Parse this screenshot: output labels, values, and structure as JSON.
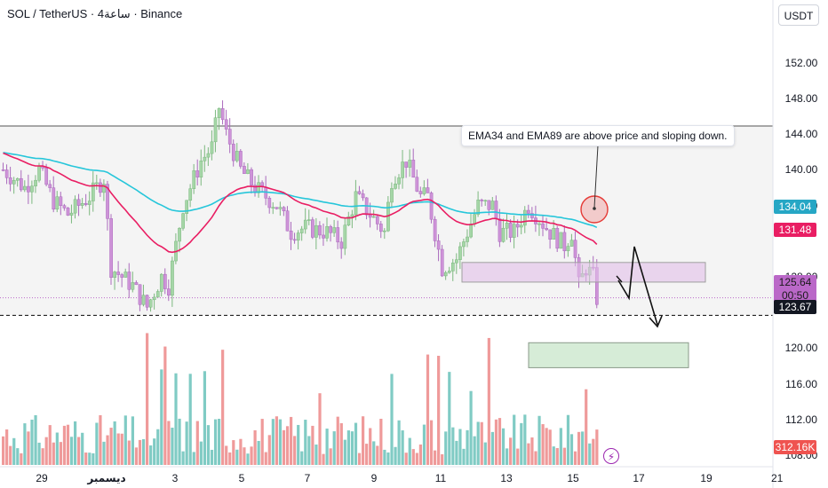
{
  "header": {
    "title": "SOL / TetherUS · 4ساعة · Binance"
  },
  "price_axis": {
    "unit": "USDT"
  },
  "tags": {
    "ema89": "134.04",
    "ema34": "131.48",
    "price": "125.64",
    "countdown": "00:50",
    "support": "123.67",
    "volume": "312.16K"
  },
  "annotation": "EMA34 and EMA89 are above price and sloping down.",
  "colors": {
    "bull": "#a5d6a7",
    "bear": "#ce93d8",
    "ema89": "#26c6da",
    "ema34": "#e91e63",
    "volume_bull": "#80cbc4",
    "volume_bear": "#ef9a9a",
    "resistance_box": "#e1bee7",
    "target_box": "#c8e6c9"
  },
  "chart_data": {
    "type": "candlestick",
    "y_ticks": [
      108,
      112,
      116,
      120,
      124,
      128,
      132,
      136,
      140,
      144,
      148,
      152
    ],
    "y_tick_labels": [
      "108.00",
      "112.00",
      "116.00",
      "120.00",
      "",
      "128.00",
      "",
      "136.00",
      "140.00",
      "144.00",
      "148.00",
      "152.00"
    ],
    "x_ticks": [
      "29",
      "ديسمبر",
      "3",
      "5",
      "7",
      "9",
      "11",
      "13",
      "15",
      "17",
      "19",
      "21"
    ],
    "ylim": [
      106,
      156
    ],
    "range_top": 144.9,
    "range_bottom": 123.67,
    "ema34_last": 131.48,
    "ema89_last": 134.04,
    "last_price": 125.64,
    "resistance_zone": [
      127.4,
      129.6
    ],
    "target_zone": [
      117.8,
      120.6
    ],
    "volume_last": "312.16K"
  }
}
